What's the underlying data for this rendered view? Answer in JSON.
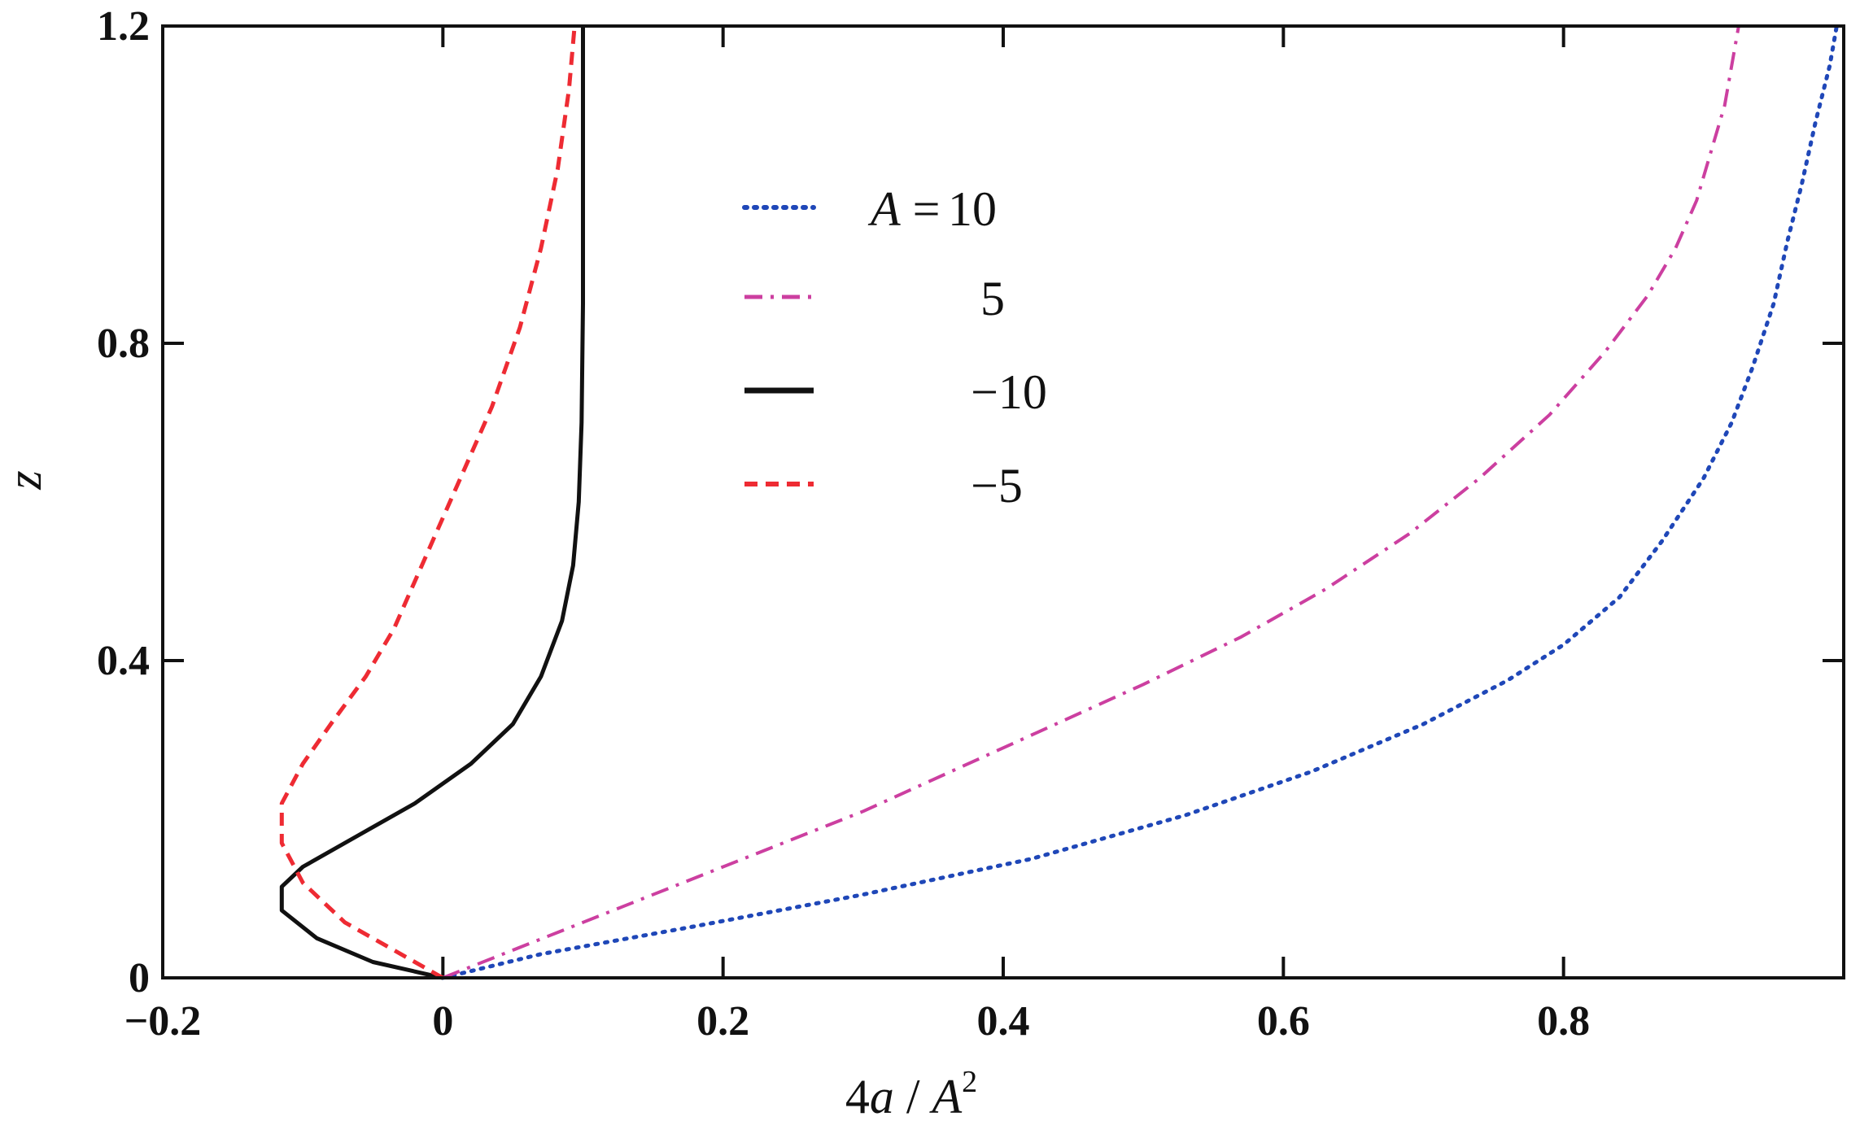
{
  "chart_data": {
    "type": "line",
    "title": "",
    "xlabel": {
      "prefix": "4",
      "var": "a",
      "sep": " / ",
      "denom": "A",
      "exp": "2"
    },
    "ylabel": "z",
    "xlim": [
      -0.2,
      1.0
    ],
    "ylim": [
      0,
      1.2
    ],
    "x_ticks": [
      -0.2,
      0,
      0.2,
      0.4,
      0.6,
      0.8
    ],
    "x_tick_labels": [
      "−0.2",
      "0",
      "0.2",
      "0.4",
      "0.6",
      "0.8"
    ],
    "y_ticks": [
      0,
      0.4,
      0.8,
      1.2
    ],
    "y_tick_labels": [
      "0",
      "0.4",
      "0.8",
      "1.2"
    ],
    "grid": false,
    "legend": {
      "placement": "top-center",
      "prefix_var": "A",
      "prefix_eq": " =",
      "entries": [
        "10",
        "5",
        "−10",
        "−5"
      ]
    },
    "series": [
      {
        "name": "10",
        "style": "dotted",
        "color": "#1f47b8",
        "points": [
          [
            0,
            0
          ],
          [
            0.07,
            0.03
          ],
          [
            0.18,
            0.065
          ],
          [
            0.3,
            0.105
          ],
          [
            0.42,
            0.15
          ],
          [
            0.53,
            0.205
          ],
          [
            0.62,
            0.26
          ],
          [
            0.7,
            0.32
          ],
          [
            0.76,
            0.375
          ],
          [
            0.8,
            0.42
          ],
          [
            0.84,
            0.48
          ],
          [
            0.87,
            0.55
          ],
          [
            0.9,
            0.63
          ],
          [
            0.92,
            0.7
          ],
          [
            0.935,
            0.77
          ],
          [
            0.95,
            0.85
          ],
          [
            0.96,
            0.93
          ],
          [
            0.97,
            1.0
          ],
          [
            0.98,
            1.08
          ],
          [
            0.99,
            1.15
          ],
          [
            0.995,
            1.2
          ]
        ]
      },
      {
        "name": "5",
        "style": "dash-dot",
        "color": "#cc3fa0",
        "points": [
          [
            0,
            0
          ],
          [
            0.1,
            0.07
          ],
          [
            0.2,
            0.14
          ],
          [
            0.3,
            0.21
          ],
          [
            0.4,
            0.29
          ],
          [
            0.5,
            0.37
          ],
          [
            0.57,
            0.43
          ],
          [
            0.63,
            0.49
          ],
          [
            0.69,
            0.56
          ],
          [
            0.74,
            0.63
          ],
          [
            0.79,
            0.71
          ],
          [
            0.83,
            0.79
          ],
          [
            0.86,
            0.86
          ],
          [
            0.88,
            0.92
          ],
          [
            0.895,
            0.98
          ],
          [
            0.905,
            1.04
          ],
          [
            0.915,
            1.1
          ],
          [
            0.925,
            1.2
          ]
        ]
      },
      {
        "name": "−10",
        "style": "solid",
        "color": "#111111",
        "points": [
          [
            0,
            0
          ],
          [
            -0.05,
            0.02
          ],
          [
            -0.09,
            0.05
          ],
          [
            -0.115,
            0.085
          ],
          [
            -0.115,
            0.115
          ],
          [
            -0.1,
            0.14
          ],
          [
            -0.06,
            0.18
          ],
          [
            -0.02,
            0.22
          ],
          [
            0.02,
            0.27
          ],
          [
            0.05,
            0.32
          ],
          [
            0.07,
            0.38
          ],
          [
            0.085,
            0.45
          ],
          [
            0.093,
            0.52
          ],
          [
            0.097,
            0.6
          ],
          [
            0.099,
            0.7
          ],
          [
            0.1,
            0.85
          ],
          [
            0.1,
            1.0
          ],
          [
            0.1,
            1.2
          ]
        ]
      },
      {
        "name": "−5",
        "style": "dashed",
        "color": "#ee2b33",
        "points": [
          [
            0,
            0
          ],
          [
            -0.03,
            0.03
          ],
          [
            -0.07,
            0.07
          ],
          [
            -0.1,
            0.12
          ],
          [
            -0.115,
            0.17
          ],
          [
            -0.115,
            0.22
          ],
          [
            -0.1,
            0.27
          ],
          [
            -0.08,
            0.32
          ],
          [
            -0.055,
            0.38
          ],
          [
            -0.035,
            0.44
          ],
          [
            -0.02,
            0.5
          ],
          [
            -0.005,
            0.56
          ],
          [
            0.015,
            0.64
          ],
          [
            0.035,
            0.72
          ],
          [
            0.055,
            0.82
          ],
          [
            0.07,
            0.92
          ],
          [
            0.082,
            1.02
          ],
          [
            0.09,
            1.12
          ],
          [
            0.094,
            1.2
          ]
        ]
      }
    ]
  }
}
